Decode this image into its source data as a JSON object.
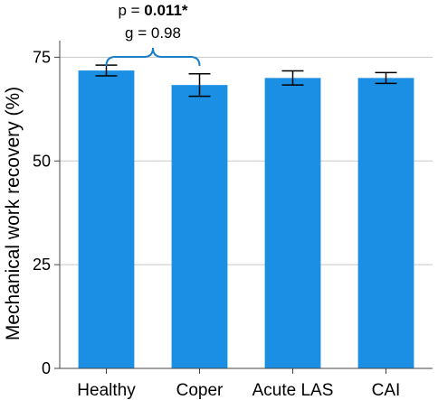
{
  "chart_data": {
    "type": "bar",
    "categories": [
      "Healthy",
      "Coper",
      "Acute LAS",
      "CAI"
    ],
    "values": [
      71.8,
      68.3,
      70.0,
      70.0
    ],
    "error": [
      [
        70.5,
        73.1
      ],
      [
        65.6,
        71.0
      ],
      [
        68.3,
        71.7
      ],
      [
        68.7,
        71.3
      ]
    ],
    "ylabel": "Mechanical work recovery (%)",
    "xlabel": "",
    "ylim": [
      0,
      79
    ],
    "yticks": [
      0,
      25,
      50,
      75
    ],
    "grid": true,
    "bar_color": "#1a8fe3",
    "annotation": {
      "between": [
        "Healthy",
        "Coper"
      ],
      "p_prefix": "p = ",
      "p_value": "0.011*",
      "g_text": "g = 0.98",
      "bracket_color": "#1a7fc8"
    }
  }
}
